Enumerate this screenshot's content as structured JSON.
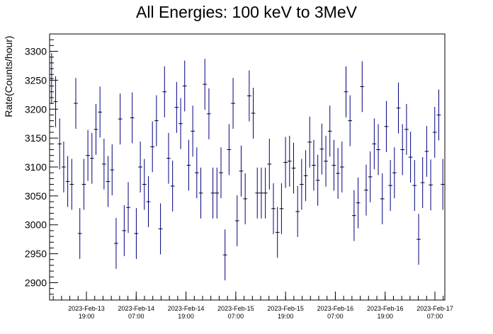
{
  "chart_data": {
    "type": "scatter",
    "title": "All Energies:  100 keV to 3MeV",
    "xlabel": "",
    "ylabel": "Rate(Counts/hour)",
    "ylim": [
      2870,
      3330
    ],
    "yticks": [
      2900,
      2950,
      3000,
      3050,
      3100,
      3150,
      3200,
      3250,
      3300
    ],
    "xticks": [
      {
        "line1": "2023-Feb-13",
        "line2": "19:00"
      },
      {
        "line1": "2023-Feb-14",
        "line2": "07:00"
      },
      {
        "line1": "2023-Feb-14",
        "line2": "19:00"
      },
      {
        "line1": "2023-Feb-15",
        "line2": "07:00"
      },
      {
        "line1": "2023-Feb-15",
        "line2": "19:00"
      },
      {
        "line1": "2023-Feb-16",
        "line2": "07:00"
      },
      {
        "line1": "2023-Feb-16",
        "line2": "19:00"
      },
      {
        "line1": "2023-Feb-17",
        "line2": "07:00"
      }
    ],
    "grid": false,
    "legend": "none",
    "marker_color": "#000080",
    "series": [
      {
        "values": [
          3253,
          3213,
          3140,
          3100,
          3075,
          3070,
          3210,
          2985,
          3070,
          3120,
          3115,
          3165,
          3195,
          3105,
          3075,
          3095,
          2968,
          3183,
          2990,
          3030,
          3185,
          2985,
          3100,
          3070,
          3040,
          3135,
          3180,
          2993,
          3230,
          3115,
          3067,
          3203,
          3175,
          3240,
          3103,
          3162,
          3090,
          3055,
          3243,
          3192,
          3055,
          3055,
          3090,
          2948,
          3130,
          3210,
          3007,
          3093,
          3045,
          3223,
          3193,
          3055,
          3055,
          3055,
          3105,
          3028,
          2987,
          3028,
          3108,
          3110,
          3098,
          3023,
          3070,
          3085,
          3143,
          3103,
          3077,
          3131,
          3110,
          3162,
          3103,
          3089,
          3100,
          3230,
          3180,
          3016,
          3038,
          3239,
          3060,
          3083,
          3140,
          3130,
          3045,
          3170,
          3068,
          3090,
          3202,
          3130,
          3165,
          3117,
          3068,
          2975,
          3073,
          3127,
          3069,
          3160,
          3190,
          3070
        ],
        "errors": [
          44,
          44,
          44,
          44,
          44,
          44,
          44,
          44,
          44,
          44,
          44,
          44,
          44,
          44,
          44,
          44,
          44,
          44,
          44,
          44,
          44,
          44,
          44,
          44,
          44,
          44,
          44,
          44,
          44,
          44,
          44,
          44,
          44,
          44,
          44,
          44,
          44,
          44,
          44,
          44,
          44,
          44,
          44,
          44,
          44,
          44,
          44,
          44,
          44,
          44,
          44,
          44,
          44,
          44,
          44,
          44,
          44,
          44,
          44,
          44,
          44,
          44,
          44,
          44,
          44,
          44,
          44,
          44,
          44,
          44,
          44,
          44,
          44,
          44,
          44,
          44,
          44,
          44,
          44,
          44,
          44,
          44,
          44,
          44,
          44,
          44,
          44,
          44,
          44,
          44,
          44,
          44,
          44,
          44,
          44,
          44,
          44,
          44
        ]
      }
    ]
  }
}
